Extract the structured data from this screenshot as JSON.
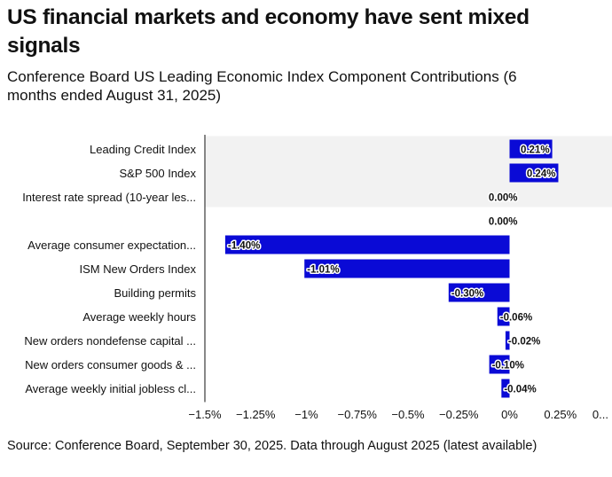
{
  "title": "US financial markets and economy have sent mixed signals",
  "subtitle": "Conference Board US Leading Economic Index Component Contributions (6 months ended August 31, 2025)",
  "source": "Source: Conference Board, September 30, 2025. Data through August 2025 (latest available)",
  "colors": {
    "bar": "#0a0ad6",
    "highlight_band": "#f2f2f2",
    "axis": "#111111"
  },
  "chart_data": {
    "type": "bar",
    "orientation": "horizontal",
    "categories": [
      "Leading Credit Index",
      "S&P 500 Index",
      "Interest rate spread (10-year les...",
      "",
      "Average consumer expectation...",
      "ISM New Orders Index",
      "Building permits",
      "Average weekly hours",
      "New orders nondefense capital ...",
      "New orders consumer goods & ...",
      "Average weekly initial jobless cl..."
    ],
    "values": [
      0.21,
      0.24,
      0.0,
      0.0,
      -1.4,
      -1.01,
      -0.3,
      -0.06,
      -0.02,
      -0.1,
      -0.04
    ],
    "value_labels": [
      "0.21%",
      "0.24%",
      "0.00%",
      "0.00%",
      "-1.40%",
      "-1.01%",
      "-0.30%",
      "-0.06%",
      "-0.02%",
      "-0.10%",
      "-0.04%"
    ],
    "highlighted_categories": [
      0,
      1,
      2
    ],
    "xlim": [
      -1.5,
      0.5
    ],
    "x_ticks": [
      -1.5,
      -1.25,
      -1.0,
      -0.75,
      -0.5,
      -0.25,
      0,
      0.25,
      0.5
    ],
    "x_tick_labels": [
      "−1.5%",
      "−1.25%",
      "−1%",
      "−0.75%",
      "−0.5%",
      "−0.25%",
      "0%",
      "0.25%",
      "0..."
    ],
    "grid": false,
    "legend": "none"
  }
}
